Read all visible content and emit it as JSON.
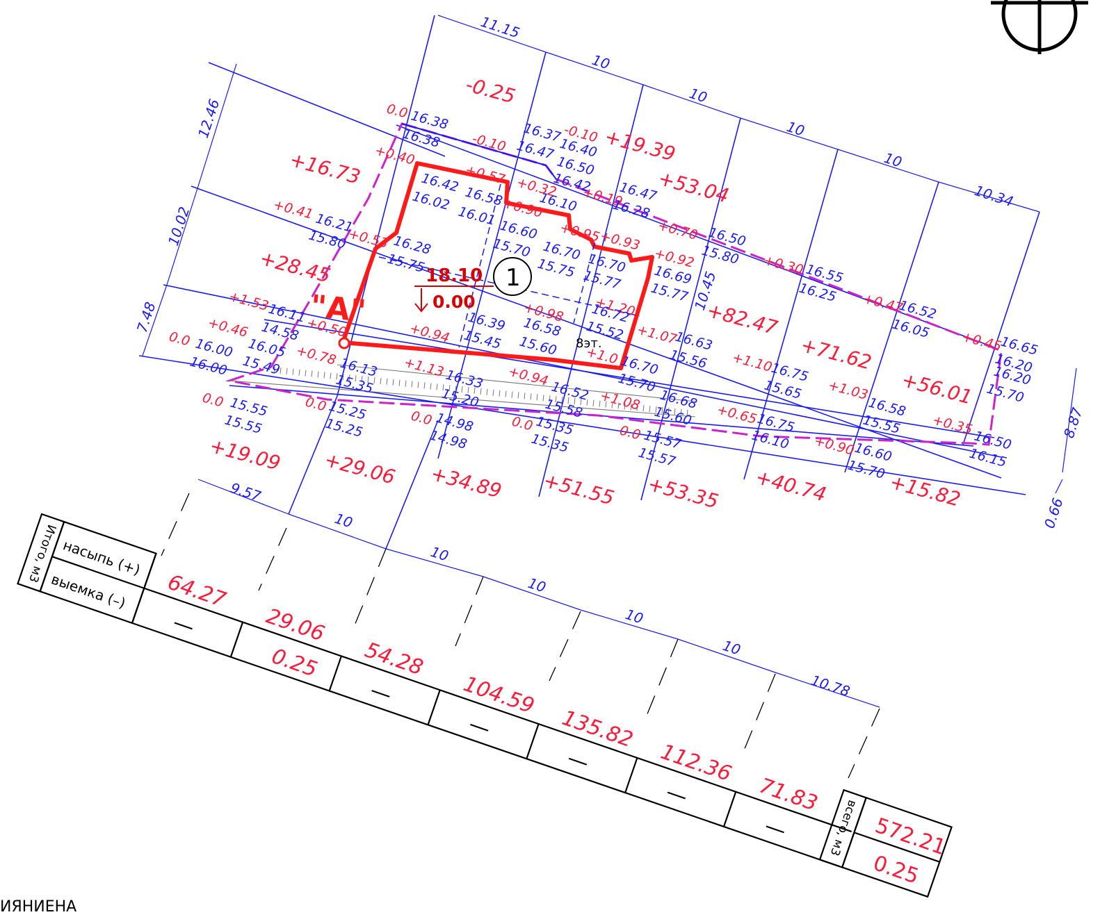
{
  "colors": {
    "blue": "#1a1aff",
    "red": "#ff1a3a",
    "dark_red": "#d60000",
    "magenta": "#cc22cc",
    "grey": "#777777",
    "black": "#000000"
  },
  "icons": {
    "north_arrow": "north-arrow-icon"
  },
  "grid_dims": {
    "top": [
      "11.15",
      "10",
      "10",
      "10",
      "10",
      "10.34"
    ],
    "left": [
      "12.46",
      "10.02",
      "7.48"
    ],
    "bottom": [
      "9.57",
      "10",
      "10",
      "10",
      "10",
      "10",
      "10.78"
    ],
    "right": [
      "10.45",
      "8.87",
      "0.66"
    ]
  },
  "square_volumes": [
    "+16.73",
    "+28.45",
    "-0.25",
    "+19.39",
    "+53.04",
    "+82.47",
    "+71.62",
    "+56.01",
    "+19.09",
    "+29.06",
    "+34.89",
    "+51.55",
    "+53.35",
    "+40.74",
    "+15.82"
  ],
  "workpoints": [
    "0.0",
    "-0.10",
    "+0.40",
    "+0.57",
    "+0.32",
    "-0.10",
    "+0.90",
    "+0.19",
    "+0.41",
    "+0.53",
    "+0.95",
    "+0.93",
    "+0.70",
    "+0.92",
    "+0.30",
    "+0.47",
    "+0.45",
    "+1.53",
    "+0.46",
    "0.0",
    "+0.50",
    "+0.78",
    "+0.98",
    "+1.20",
    "+1.07",
    "+1.10",
    "+1.03",
    "+0.35",
    "+0.94",
    "+1.13",
    "+0.94",
    "+1.0",
    "+1.08",
    "+0.65",
    "+0.90",
    "0.0",
    "0.0",
    "0.0",
    "0.0",
    "0.0"
  ],
  "elevations": [
    "16.38",
    "16.38",
    "16.37",
    "16.47",
    "16.40",
    "16.50",
    "16.42",
    "16.10",
    "16.42",
    "16.02",
    "16.58",
    "16.01",
    "16.60",
    "15.70",
    "16.47",
    "16.28",
    "16.21",
    "15.80",
    "16.28",
    "15.75",
    "16.70",
    "15.75",
    "16.70",
    "15.77",
    "16.69",
    "15.77",
    "16.50",
    "15.80",
    "16.55",
    "16.25",
    "16.52",
    "16.05",
    "16.65",
    "16.20",
    "16.20",
    "15.70",
    "16.39",
    "15.45",
    "16.58",
    "15.60",
    "16.72",
    "15.52",
    "16.11",
    "14.58",
    "16.00",
    "16.00",
    "16.05",
    "15.49",
    "16.63",
    "15.56",
    "16.70",
    "15.70",
    "16.75",
    "15.65",
    "16.58",
    "15.55",
    "16.13",
    "15.35",
    "16.33",
    "15.20",
    "16.52",
    "15.58",
    "16.68",
    "15.60",
    "16.75",
    "16.10",
    "16.60",
    "15.70",
    "16.50",
    "16.15",
    "15.55",
    "15.55",
    "15.25",
    "15.25",
    "14.98",
    "14.98",
    "15.35",
    "15.35",
    "15.57",
    "15.57"
  ],
  "building": {
    "mark": "\"А\"",
    "elevation": "18.10",
    "zero": "0.00",
    "number": "1",
    "floors": "8эт."
  },
  "table": {
    "header": "Итого, м3",
    "row_fill": "насыпь (+)",
    "row_cut": "выемка (–)",
    "fill": [
      "64.27",
      "29.06",
      "54.28",
      "104.59",
      "135.82",
      "112.36",
      "71.83"
    ],
    "cut": [
      "—",
      "0.25",
      "—",
      "—",
      "—",
      "—",
      "—"
    ],
    "total_label": "всего, м3",
    "total_fill": "572.21",
    "total_cut": "0.25"
  },
  "footer_text": "ИЯНИЕНА"
}
